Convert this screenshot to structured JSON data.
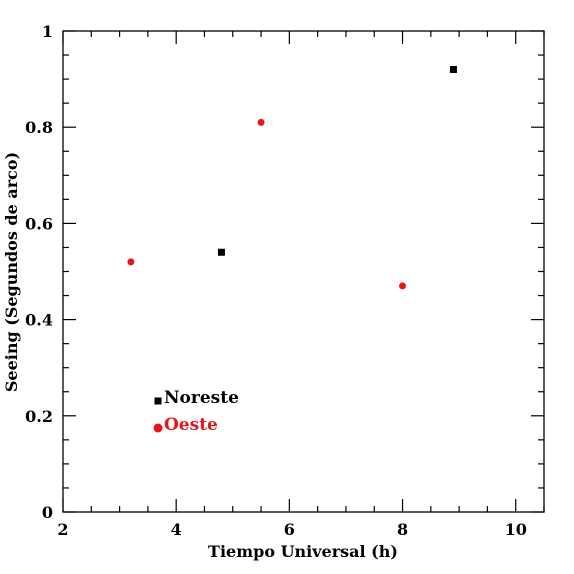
{
  "chart_data": {
    "type": "scatter",
    "xlabel": "Tiempo Universal (h)",
    "ylabel": "Seeing (Segundos de arco)",
    "xlim": [
      2,
      10.5
    ],
    "ylim": [
      0,
      1
    ],
    "x_ticks": [
      2,
      4,
      6,
      8,
      10
    ],
    "x_tick_labels": [
      "2",
      "4",
      "6",
      "8",
      "10"
    ],
    "x_minor_step": 0.5,
    "y_ticks": [
      0,
      0.2,
      0.4,
      0.6,
      0.8,
      1
    ],
    "y_tick_labels": [
      "0",
      "0.2",
      "0.4",
      "0.6",
      "0.8",
      "1"
    ],
    "y_minor_step": 0.05,
    "grid": false,
    "legend_position": "lower-left",
    "series": [
      {
        "name": "Noreste",
        "marker": "square",
        "color": "#000000",
        "points": [
          {
            "x": 4.8,
            "y": 0.54
          },
          {
            "x": 8.9,
            "y": 0.92
          }
        ]
      },
      {
        "name": "Oeste",
        "marker": "circle",
        "color": "#e8141c",
        "points": [
          {
            "x": 3.2,
            "y": 0.52
          },
          {
            "x": 5.5,
            "y": 0.81
          },
          {
            "x": 8.0,
            "y": 0.47
          }
        ]
      }
    ]
  }
}
